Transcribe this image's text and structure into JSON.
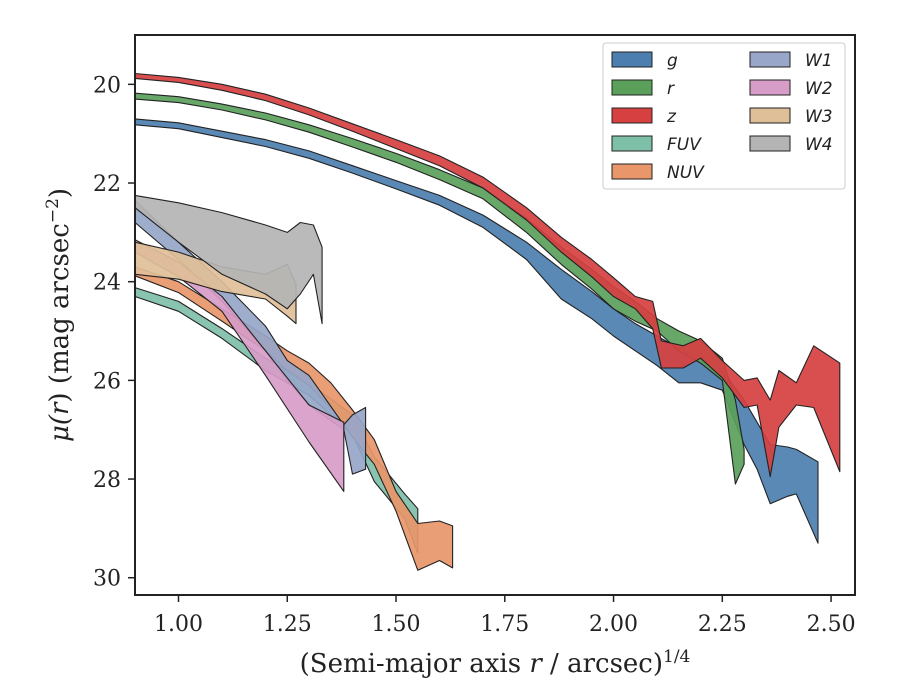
{
  "chart_data": {
    "type": "area",
    "xlabel": "(Semi-major axis r / arcsec)",
    "xlabel_prefix": "(Semi-major axis ",
    "xlabel_var": "r",
    "xlabel_suffix": " / arcsec)",
    "xlabel_sup": "1/4",
    "ylabel": "μ(r) (mag arcsec⁻²)",
    "ylabel_mu": "μ(",
    "ylabel_var": "r",
    "ylabel_rest": ") (mag arcsec",
    "ylabel_sup": "−2",
    "ylabel_close": ")",
    "xlim": [
      0.9,
      2.555
    ],
    "ylim": [
      30.35,
      19.0
    ],
    "y_inverted": true,
    "xticks": [
      1.0,
      1.25,
      1.5,
      1.75,
      2.0,
      2.25,
      2.5
    ],
    "xtick_labels": [
      "1.00",
      "1.25",
      "1.50",
      "1.75",
      "2.00",
      "2.25",
      "2.50"
    ],
    "yticks": [
      20,
      22,
      24,
      26,
      28,
      30
    ],
    "ytick_labels": [
      "20",
      "22",
      "24",
      "26",
      "28",
      "30"
    ],
    "legend": {
      "position": "upper right",
      "columns": 2
    },
    "series": [
      {
        "name": "g",
        "color": "#4c7fb0",
        "upper": [
          [
            0.9,
            20.7
          ],
          [
            1.0,
            20.78
          ],
          [
            1.1,
            20.95
          ],
          [
            1.2,
            21.12
          ],
          [
            1.3,
            21.35
          ],
          [
            1.4,
            21.65
          ],
          [
            1.5,
            21.95
          ],
          [
            1.6,
            22.25
          ],
          [
            1.7,
            22.65
          ],
          [
            1.8,
            23.2
          ],
          [
            1.88,
            23.75
          ],
          [
            1.95,
            24.2
          ],
          [
            2.0,
            24.55
          ],
          [
            2.05,
            24.85
          ],
          [
            2.1,
            25.1
          ],
          [
            2.15,
            25.35
          ],
          [
            2.2,
            25.5
          ],
          [
            2.25,
            25.8
          ],
          [
            2.3,
            26.4
          ],
          [
            2.33,
            26.85
          ],
          [
            2.36,
            27.3
          ],
          [
            2.4,
            27.35
          ],
          [
            2.42,
            27.4
          ],
          [
            2.47,
            27.65
          ]
        ],
        "lower": [
          [
            0.9,
            20.82
          ],
          [
            1.0,
            20.9
          ],
          [
            1.1,
            21.08
          ],
          [
            1.2,
            21.26
          ],
          [
            1.3,
            21.5
          ],
          [
            1.4,
            21.8
          ],
          [
            1.5,
            22.12
          ],
          [
            1.6,
            22.45
          ],
          [
            1.7,
            22.9
          ],
          [
            1.8,
            23.55
          ],
          [
            1.88,
            24.35
          ],
          [
            1.95,
            24.75
          ],
          [
            2.0,
            25.1
          ],
          [
            2.05,
            25.4
          ],
          [
            2.1,
            25.7
          ],
          [
            2.15,
            26.05
          ],
          [
            2.2,
            26.05
          ],
          [
            2.25,
            26.2
          ],
          [
            2.3,
            27.3
          ],
          [
            2.33,
            27.8
          ],
          [
            2.36,
            28.5
          ],
          [
            2.4,
            28.35
          ],
          [
            2.42,
            28.3
          ],
          [
            2.47,
            29.3
          ]
        ]
      },
      {
        "name": "r",
        "color": "#5aa05a",
        "upper": [
          [
            0.9,
            20.18
          ],
          [
            1.0,
            20.25
          ],
          [
            1.1,
            20.4
          ],
          [
            1.2,
            20.58
          ],
          [
            1.3,
            20.82
          ],
          [
            1.4,
            21.1
          ],
          [
            1.5,
            21.4
          ],
          [
            1.6,
            21.73
          ],
          [
            1.7,
            22.1
          ],
          [
            1.8,
            22.72
          ],
          [
            1.88,
            23.3
          ],
          [
            1.95,
            23.75
          ],
          [
            2.0,
            24.1
          ],
          [
            2.05,
            24.4
          ],
          [
            2.1,
            24.75
          ],
          [
            2.15,
            25.0
          ],
          [
            2.2,
            25.2
          ],
          [
            2.25,
            25.55
          ],
          [
            2.28,
            26.4
          ],
          [
            2.3,
            27.4
          ]
        ],
        "lower": [
          [
            0.9,
            20.3
          ],
          [
            1.0,
            20.37
          ],
          [
            1.1,
            20.52
          ],
          [
            1.2,
            20.72
          ],
          [
            1.3,
            20.97
          ],
          [
            1.4,
            21.27
          ],
          [
            1.5,
            21.58
          ],
          [
            1.6,
            21.93
          ],
          [
            1.7,
            22.32
          ],
          [
            1.8,
            23.0
          ],
          [
            1.88,
            23.65
          ],
          [
            1.95,
            24.15
          ],
          [
            2.0,
            24.55
          ],
          [
            2.05,
            24.8
          ],
          [
            2.1,
            25.0
          ],
          [
            2.15,
            25.4
          ],
          [
            2.2,
            25.65
          ],
          [
            2.25,
            26.0
          ],
          [
            2.28,
            28.1
          ],
          [
            2.3,
            27.7
          ]
        ]
      },
      {
        "name": "z",
        "color": "#d64041",
        "upper": [
          [
            0.9,
            19.78
          ],
          [
            1.0,
            19.86
          ],
          [
            1.1,
            20.0
          ],
          [
            1.2,
            20.2
          ],
          [
            1.3,
            20.48
          ],
          [
            1.4,
            20.8
          ],
          [
            1.5,
            21.12
          ],
          [
            1.6,
            21.45
          ],
          [
            1.7,
            21.88
          ],
          [
            1.8,
            22.5
          ],
          [
            1.88,
            23.1
          ],
          [
            1.95,
            23.55
          ],
          [
            2.0,
            23.92
          ],
          [
            2.05,
            24.3
          ],
          [
            2.09,
            24.4
          ],
          [
            2.11,
            25.2
          ],
          [
            2.16,
            25.3
          ],
          [
            2.2,
            25.15
          ],
          [
            2.25,
            25.6
          ],
          [
            2.3,
            26.0
          ],
          [
            2.33,
            25.95
          ],
          [
            2.36,
            26.4
          ],
          [
            2.38,
            25.8
          ],
          [
            2.42,
            26.05
          ],
          [
            2.46,
            25.3
          ],
          [
            2.52,
            25.65
          ]
        ],
        "lower": [
          [
            0.9,
            19.88
          ],
          [
            1.0,
            19.96
          ],
          [
            1.1,
            20.12
          ],
          [
            1.2,
            20.33
          ],
          [
            1.3,
            20.62
          ],
          [
            1.4,
            20.95
          ],
          [
            1.5,
            21.3
          ],
          [
            1.6,
            21.65
          ],
          [
            1.7,
            22.1
          ],
          [
            1.8,
            22.75
          ],
          [
            1.88,
            23.4
          ],
          [
            1.95,
            23.9
          ],
          [
            2.0,
            24.3
          ],
          [
            2.05,
            24.55
          ],
          [
            2.09,
            24.95
          ],
          [
            2.11,
            25.75
          ],
          [
            2.16,
            25.75
          ],
          [
            2.2,
            25.55
          ],
          [
            2.25,
            25.95
          ],
          [
            2.3,
            26.55
          ],
          [
            2.33,
            26.5
          ],
          [
            2.36,
            27.95
          ],
          [
            2.38,
            26.95
          ],
          [
            2.42,
            26.5
          ],
          [
            2.46,
            26.55
          ],
          [
            2.52,
            27.85
          ]
        ]
      },
      {
        "name": "FUV",
        "color": "#7ebfa8",
        "upper": [
          [
            0.9,
            24.12
          ],
          [
            1.0,
            24.4
          ],
          [
            1.1,
            24.95
          ],
          [
            1.2,
            25.55
          ],
          [
            1.3,
            26.05
          ],
          [
            1.4,
            26.7
          ],
          [
            1.45,
            27.55
          ],
          [
            1.52,
            28.3
          ],
          [
            1.55,
            28.6
          ]
        ],
        "lower": [
          [
            0.9,
            24.3
          ],
          [
            1.0,
            24.6
          ],
          [
            1.1,
            25.15
          ],
          [
            1.2,
            25.8
          ],
          [
            1.3,
            26.3
          ],
          [
            1.4,
            27.1
          ],
          [
            1.45,
            28.05
          ],
          [
            1.52,
            28.8
          ],
          [
            1.55,
            29.5
          ]
        ]
      },
      {
        "name": "NUV",
        "color": "#e8966a",
        "upper": [
          [
            0.9,
            23.7
          ],
          [
            1.0,
            24.0
          ],
          [
            1.1,
            24.55
          ],
          [
            1.2,
            25.1
          ],
          [
            1.25,
            25.4
          ],
          [
            1.3,
            25.65
          ],
          [
            1.35,
            26.05
          ],
          [
            1.4,
            26.6
          ],
          [
            1.45,
            27.2
          ],
          [
            1.5,
            28.25
          ],
          [
            1.55,
            28.9
          ],
          [
            1.6,
            28.85
          ],
          [
            1.63,
            28.95
          ]
        ],
        "lower": [
          [
            0.9,
            23.88
          ],
          [
            1.0,
            24.22
          ],
          [
            1.1,
            24.8
          ],
          [
            1.2,
            25.4
          ],
          [
            1.25,
            25.8
          ],
          [
            1.3,
            26.1
          ],
          [
            1.35,
            26.55
          ],
          [
            1.4,
            27.15
          ],
          [
            1.45,
            27.7
          ],
          [
            1.5,
            28.65
          ],
          [
            1.55,
            29.85
          ],
          [
            1.6,
            29.65
          ],
          [
            1.63,
            29.8
          ]
        ]
      },
      {
        "name": "W1",
        "color": "#97a6c9",
        "upper": [
          [
            0.9,
            22.35
          ],
          [
            1.0,
            23.2
          ],
          [
            1.1,
            24.0
          ],
          [
            1.2,
            24.9
          ],
          [
            1.25,
            25.6
          ],
          [
            1.3,
            25.9
          ],
          [
            1.38,
            26.9
          ],
          [
            1.4,
            26.7
          ],
          [
            1.43,
            26.55
          ]
        ],
        "lower": [
          [
            0.9,
            22.8
          ],
          [
            1.0,
            23.55
          ],
          [
            1.1,
            24.4
          ],
          [
            1.2,
            25.4
          ],
          [
            1.25,
            26.0
          ],
          [
            1.3,
            26.5
          ],
          [
            1.38,
            27.0
          ],
          [
            1.4,
            27.9
          ],
          [
            1.43,
            27.8
          ]
        ]
      },
      {
        "name": "W2",
        "color": "#d79cc8",
        "upper": [
          [
            0.9,
            23.15
          ],
          [
            1.0,
            23.6
          ],
          [
            1.1,
            24.3
          ],
          [
            1.2,
            25.4
          ],
          [
            1.3,
            26.5
          ],
          [
            1.38,
            26.85
          ]
        ],
        "lower": [
          [
            0.9,
            23.4
          ],
          [
            1.0,
            23.9
          ],
          [
            1.1,
            24.6
          ],
          [
            1.2,
            25.9
          ],
          [
            1.3,
            27.25
          ],
          [
            1.38,
            28.25
          ]
        ]
      },
      {
        "name": "W3",
        "color": "#dfbf98",
        "upper": [
          [
            0.9,
            23.2
          ],
          [
            1.0,
            23.4
          ],
          [
            1.1,
            23.7
          ],
          [
            1.2,
            23.85
          ],
          [
            1.25,
            23.65
          ],
          [
            1.27,
            24.05
          ]
        ],
        "lower": [
          [
            0.9,
            23.85
          ],
          [
            1.0,
            23.95
          ],
          [
            1.1,
            24.2
          ],
          [
            1.2,
            24.35
          ],
          [
            1.25,
            24.7
          ],
          [
            1.27,
            24.85
          ]
        ]
      },
      {
        "name": "W4",
        "color": "#b4b4b4",
        "upper": [
          [
            0.9,
            22.25
          ],
          [
            1.0,
            22.4
          ],
          [
            1.1,
            22.6
          ],
          [
            1.2,
            22.85
          ],
          [
            1.25,
            23.0
          ],
          [
            1.28,
            22.8
          ],
          [
            1.31,
            22.85
          ],
          [
            1.33,
            23.3
          ]
        ],
        "lower": [
          [
            0.9,
            22.5
          ],
          [
            1.0,
            23.2
          ],
          [
            1.1,
            23.85
          ],
          [
            1.2,
            24.25
          ],
          [
            1.25,
            24.55
          ],
          [
            1.28,
            24.25
          ],
          [
            1.31,
            23.85
          ],
          [
            1.33,
            24.85
          ]
        ]
      }
    ]
  }
}
